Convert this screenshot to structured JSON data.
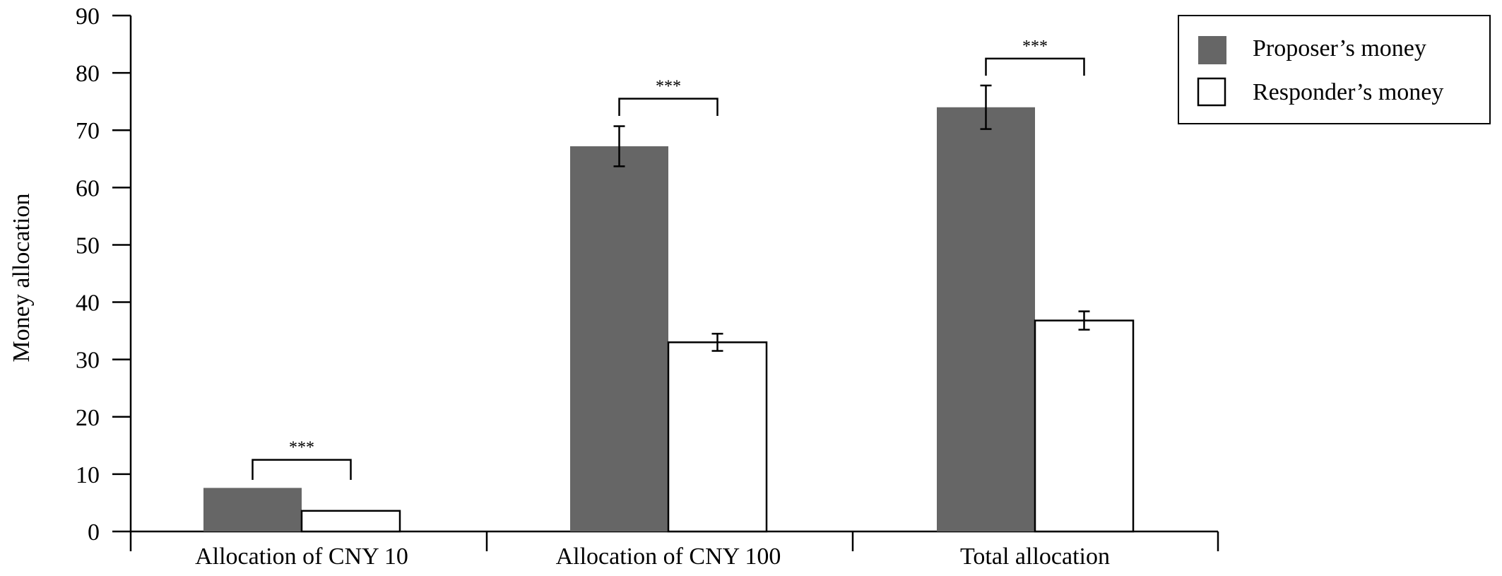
{
  "chart_data": {
    "type": "bar",
    "title": "",
    "xlabel": "",
    "ylabel": "Money allocation",
    "ylim": [
      0,
      90
    ],
    "yticks": [
      0,
      10,
      20,
      30,
      40,
      50,
      60,
      70,
      80,
      90
    ],
    "categories": [
      "Allocation of CNY 10",
      "Allocation of CNY 100",
      "Total allocation"
    ],
    "series": [
      {
        "name": "Proposer’s money",
        "values": [
          7.6,
          67.2,
          74.0
        ],
        "errors": [
          0,
          3.5,
          3.8
        ],
        "color": "#666666"
      },
      {
        "name": "Responder’s money",
        "values": [
          3.6,
          33.0,
          36.8
        ],
        "errors": [
          0,
          1.5,
          1.6
        ],
        "color": "#ffffff"
      }
    ],
    "significance": [
      "***",
      "***",
      "***"
    ],
    "legend_position": "top-right",
    "grid": false
  }
}
